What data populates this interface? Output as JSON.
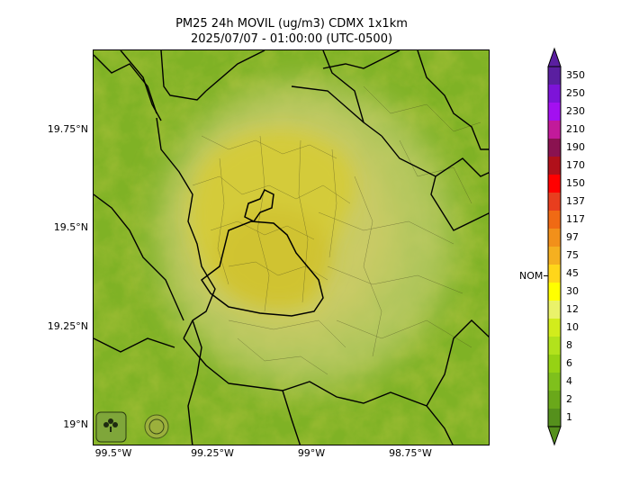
{
  "title": "PM25 24h MOVIL (ug/m3) CDMX 1x1km",
  "subtitle": "2025/07/07 - 01:00:00 (UTC-0500)",
  "lat_labels": [
    "19.75°N",
    "19.5°N",
    "19.25°N",
    "19°N"
  ],
  "lon_labels": [
    "99.5°W",
    "99.25°W",
    "99°W",
    "98.75°W"
  ],
  "colorbar": {
    "labels": [
      "350",
      "250",
      "230",
      "210",
      "190",
      "170",
      "150",
      "137",
      "117",
      "97",
      "75",
      "45",
      "30",
      "12",
      "10",
      "8",
      "6",
      "4",
      "2",
      "1"
    ],
    "colors": [
      "#5a1fa0",
      "#7d14d8",
      "#a310f0",
      "#c21a9a",
      "#8a1250",
      "#b0101a",
      "#ff0000",
      "#e83e1e",
      "#f06a14",
      "#f2901a",
      "#f5b020",
      "#ffd61a",
      "#ffff00",
      "#eaf26a",
      "#d2ec1c",
      "#b2e21c",
      "#96d214",
      "#7fc01c",
      "#6aa81a",
      "#55901c"
    ],
    "reference_label": "NOM"
  },
  "logos": [
    "SEDEMA",
    "CIUDAD DE MÉXICO"
  ]
}
